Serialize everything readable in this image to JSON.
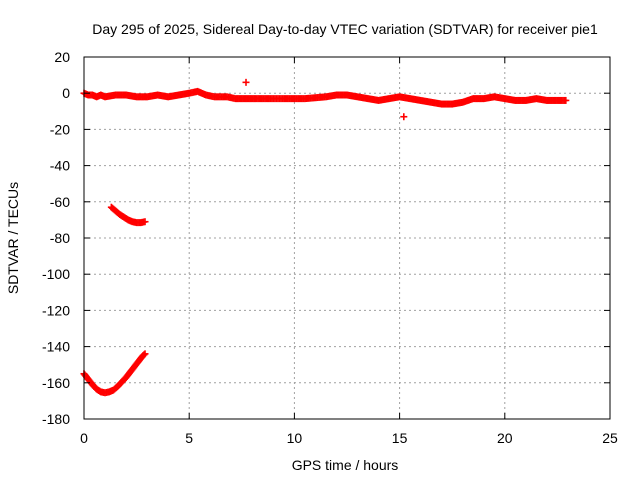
{
  "colors": {
    "series": "#ff0000",
    "grid": "#a0a0a0",
    "axis": "#000000",
    "background": "#ffffff"
  },
  "chart_data": {
    "type": "scatter",
    "title": "Day 295 of 2025, Sidereal Day-to-day VTEC variation (SDTVAR) for receiver pie1",
    "xlabel": "GPS time / hours",
    "ylabel": "SDTVAR / TECUs",
    "xlim": [
      0,
      25
    ],
    "ylim": [
      -180,
      20
    ],
    "grid": true,
    "legend": "none",
    "x_ticks": [
      0,
      5,
      10,
      15,
      20,
      25
    ],
    "y_ticks": [
      20,
      0,
      -20,
      -40,
      -60,
      -80,
      -100,
      -120,
      -140,
      -160,
      -180
    ],
    "x_tick_labels": [
      "0",
      "5",
      "10",
      "15",
      "20",
      "25"
    ],
    "y_tick_labels": [
      "20",
      "0",
      "-20",
      "-40",
      "-60",
      "-80",
      "-100",
      "-120",
      "-140",
      "-160",
      "-180"
    ],
    "series": [
      {
        "name": "SDTVAR",
        "marker": "plus",
        "segments": [
          {
            "name": "main-band",
            "x": [
              0.0,
              0.2,
              0.4,
              0.6,
              0.8,
              1.0,
              1.5,
              2.0,
              2.5,
              3.0,
              3.5,
              4.0,
              4.5,
              5.0,
              5.4,
              5.8,
              6.2,
              6.8,
              7.2,
              7.7,
              8.2,
              8.8,
              9.5,
              10.5,
              11.5,
              12.0,
              12.5,
              13.0,
              13.5,
              14.0,
              14.5,
              15.0,
              15.5,
              16.0,
              16.5,
              17.0,
              17.5,
              18.0,
              18.5,
              19.0,
              19.5,
              20.0,
              20.5,
              21.0,
              21.5,
              22.0,
              22.5,
              22.9
            ],
            "y": [
              0,
              -1,
              -1,
              -2,
              -1,
              -2,
              -1,
              -1,
              -2,
              -2,
              -1,
              -2,
              -1,
              0,
              1,
              -1,
              -2,
              -2,
              -3,
              -3,
              -3,
              -3,
              -3,
              -3,
              -2,
              -1,
              -1,
              -2,
              -3,
              -4,
              -3,
              -2,
              -3,
              -4,
              -5,
              -6,
              -6,
              -5,
              -3,
              -3,
              -2,
              -3,
              -4,
              -4,
              -3,
              -4,
              -4,
              -4
            ]
          },
          {
            "name": "upper-arc",
            "x": [
              1.3,
              1.5,
              1.7,
              1.9,
              2.1,
              2.3,
              2.5,
              2.7,
              2.9
            ],
            "y": [
              -63,
              -65,
              -67,
              -68.5,
              -70,
              -71,
              -71.5,
              -71.5,
              -71
            ]
          },
          {
            "name": "lower-arc",
            "x": [
              0.0,
              0.2,
              0.4,
              0.6,
              0.8,
              1.0,
              1.2,
              1.4,
              1.6,
              1.8,
              2.0,
              2.2,
              2.4,
              2.6,
              2.8,
              2.9
            ],
            "y": [
              -155,
              -158,
              -161,
              -163.5,
              -165,
              -165.5,
              -165,
              -164,
              -162,
              -159.5,
              -157,
              -154,
              -151,
              -148,
              -145,
              -144
            ]
          },
          {
            "name": "outlier-1",
            "x": [
              7.7
            ],
            "y": [
              6
            ]
          },
          {
            "name": "outlier-2",
            "x": [
              15.2
            ],
            "y": [
              -13
            ]
          }
        ]
      }
    ]
  }
}
